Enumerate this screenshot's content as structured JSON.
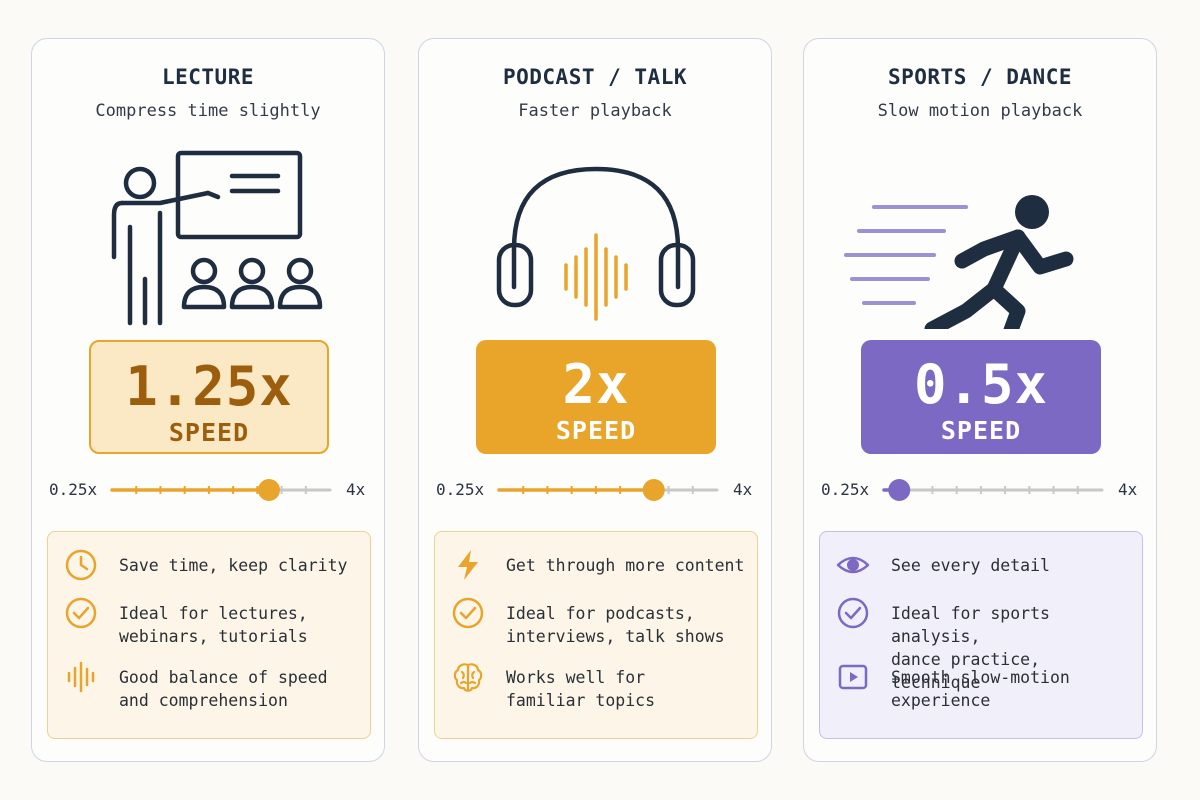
{
  "colors": {
    "orange": "#e8a42b",
    "purple": "#7b69c4",
    "navy": "#1f2d40",
    "track": "#c8c8c8"
  },
  "cards": [
    {
      "title": "LECTURE",
      "subtitle": "Compress time slightly",
      "illustration": "lecture-icon",
      "speed": {
        "value": "1.25x",
        "label": "SPEED"
      },
      "slider": {
        "min_label": "0.25x",
        "max_label": "4x",
        "level": 0.72
      },
      "features": [
        {
          "icon": "clock-icon",
          "text": "Save time, keep clarity"
        },
        {
          "icon": "check-circle-icon",
          "text": "Ideal for lectures,\nwebinars, tutorials"
        },
        {
          "icon": "sound-wave-icon",
          "text": "Good balance of speed\nand comprehension"
        }
      ]
    },
    {
      "title": "PODCAST / TALK",
      "subtitle": "Faster playback",
      "illustration": "headphones-icon",
      "speed": {
        "value": "2x",
        "label": "SPEED"
      },
      "slider": {
        "min_label": "0.25x",
        "max_label": "4x",
        "level": 0.71
      },
      "features": [
        {
          "icon": "lightning-icon",
          "text": "Get through more content"
        },
        {
          "icon": "check-circle-icon",
          "text": "Ideal for podcasts,\ninterviews, talk shows"
        },
        {
          "icon": "brain-icon",
          "text": "Works well for\nfamiliar topics"
        }
      ]
    },
    {
      "title": "SPORTS / DANCE",
      "subtitle": "Slow motion playback",
      "illustration": "runner-icon",
      "speed": {
        "value": "0.5x",
        "label": "SPEED"
      },
      "slider": {
        "min_label": "0.25x",
        "max_label": "4x",
        "level": 0.07
      },
      "features": [
        {
          "icon": "eye-icon",
          "text": "See every detail"
        },
        {
          "icon": "check-circle-icon",
          "text": "Ideal for sports analysis,\ndance practice, technique"
        },
        {
          "icon": "play-icon",
          "text": "Smooth slow-motion\nexperience"
        }
      ]
    }
  ]
}
